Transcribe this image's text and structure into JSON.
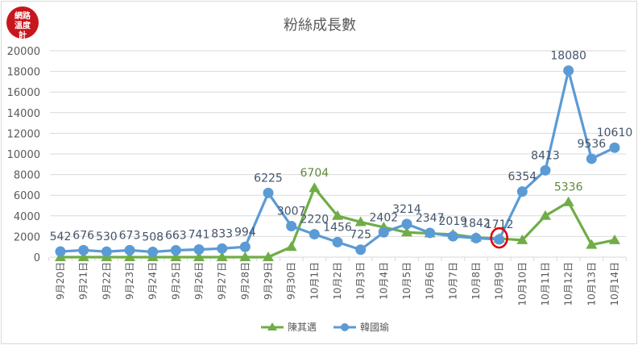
{
  "logo": {
    "text": "網路溫度計",
    "color": "#c8161d"
  },
  "chart_data": {
    "type": "line",
    "title": "粉絲成長數",
    "xlabel": "",
    "ylabel": "",
    "ylim": [
      0,
      20000
    ],
    "yticks": [
      0,
      2000,
      4000,
      6000,
      8000,
      10000,
      12000,
      14000,
      16000,
      18000,
      20000
    ],
    "grid": true,
    "legend_position": "bottom",
    "categories": [
      "9月20日",
      "9月21日",
      "9月22日",
      "9月23日",
      "9月24日",
      "9月25日",
      "9月26日",
      "9月27日",
      "9月28日",
      "9月29日",
      "9月30日",
      "10月1日",
      "10月2日",
      "10月3日",
      "10月4日",
      "10月5日",
      "10月6日",
      "10月7日",
      "10月8日",
      "10月9日",
      "10月10日",
      "10月11日",
      "10月12日",
      "10月13日",
      "10月14日"
    ],
    "series": [
      {
        "name": "陳其邁",
        "color": "#70ad47",
        "marker": "triangle",
        "values": [
          0,
          0,
          0,
          0,
          0,
          0,
          0,
          0,
          0,
          0,
          1000,
          6704,
          4000,
          3400,
          2900,
          2400,
          2300,
          2200,
          1900,
          1800,
          1650,
          4000,
          5336,
          1200,
          1650
        ],
        "labels": {
          "11": "6704",
          "22": "5336"
        }
      },
      {
        "name": "韓國瑜",
        "color": "#5b9bd5",
        "marker": "circle",
        "values": [
          542,
          676,
          530,
          673,
          508,
          663,
          741,
          833,
          994,
          6225,
          3007,
          2220,
          1456,
          725,
          2402,
          3214,
          2347,
          2019,
          1842,
          1712,
          6354,
          8413,
          18080,
          9536,
          10610
        ],
        "labels": "all"
      }
    ],
    "annotations": [
      {
        "type": "red-circle",
        "category": "10月9日",
        "series": "韓國瑜",
        "color": "#e00000"
      }
    ]
  }
}
